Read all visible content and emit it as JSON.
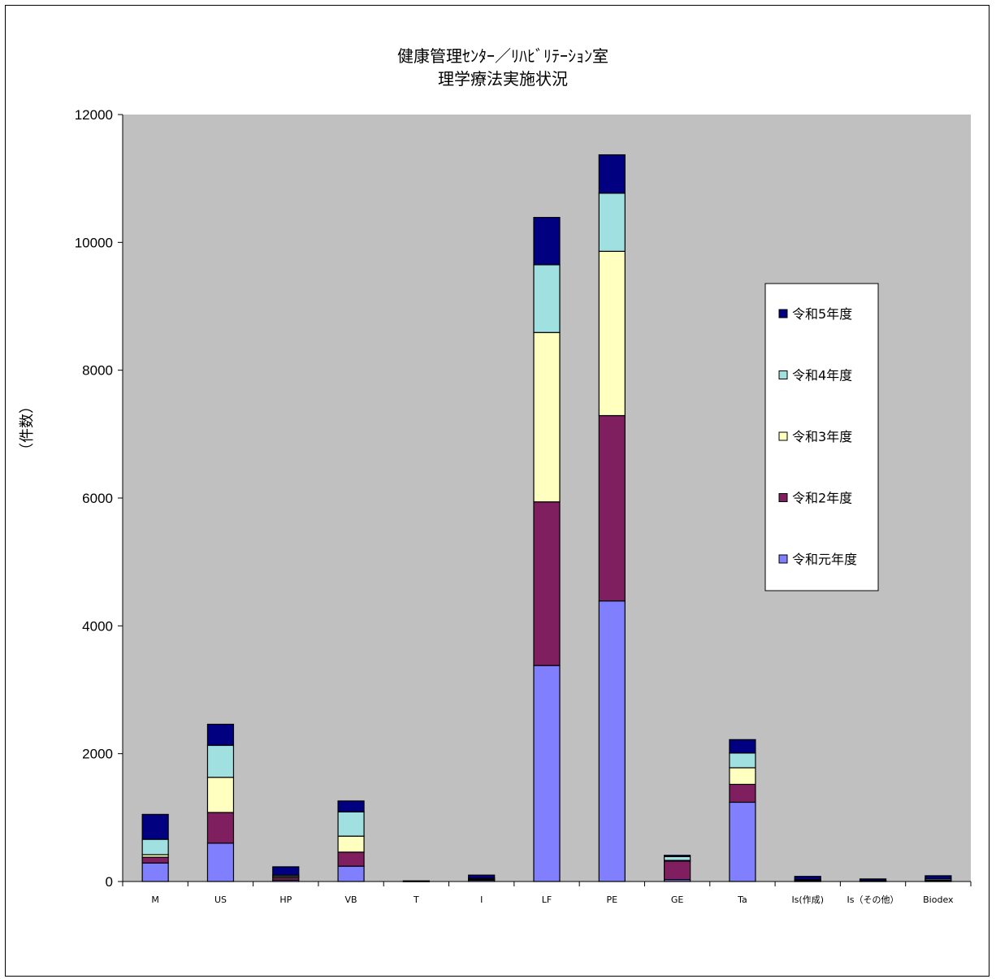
{
  "chart_data": {
    "type": "bar",
    "stacked": true,
    "title_lines": [
      "健康管理ｾﾝﾀｰ／ﾘﾊﾋﾞﾘﾃｰｼｮﾝ室",
      "理学療法実施状況"
    ],
    "xlabel": "",
    "ylabel": "（件数）",
    "ylim": [
      0,
      12000
    ],
    "yticks": [
      0,
      2000,
      4000,
      6000,
      8000,
      10000,
      12000
    ],
    "grid": false,
    "plot_background": "#c0c0c0",
    "legend_position": "right",
    "categories": [
      "M",
      "US",
      "HP",
      "VB",
      "T",
      "I",
      "LF",
      "PE",
      "GE",
      "Ta",
      "Is(作成)",
      "Is（その他）",
      "Biodex"
    ],
    "series": [
      {
        "name": "令和元年度",
        "color": "#8080ff",
        "values": [
          290,
          600,
          20,
          240,
          0,
          20,
          3380,
          4390,
          30,
          1240,
          0,
          0,
          0
        ]
      },
      {
        "name": "令和2年度",
        "color": "#7f1f5f",
        "values": [
          90,
          480,
          40,
          220,
          0,
          10,
          2560,
          2900,
          290,
          280,
          10,
          5,
          10
        ]
      },
      {
        "name": "令和3年度",
        "color": "#ffffc0",
        "values": [
          40,
          550,
          20,
          250,
          0,
          10,
          2650,
          2570,
          10,
          260,
          10,
          5,
          10
        ]
      },
      {
        "name": "令和4年度",
        "color": "#a0e0e0",
        "values": [
          240,
          500,
          20,
          380,
          0,
          10,
          1060,
          910,
          60,
          230,
          10,
          5,
          20
        ]
      },
      {
        "name": "令和5年度",
        "color": "#000080",
        "values": [
          390,
          330,
          130,
          170,
          10,
          50,
          740,
          600,
          20,
          210,
          50,
          25,
          50
        ]
      }
    ]
  }
}
